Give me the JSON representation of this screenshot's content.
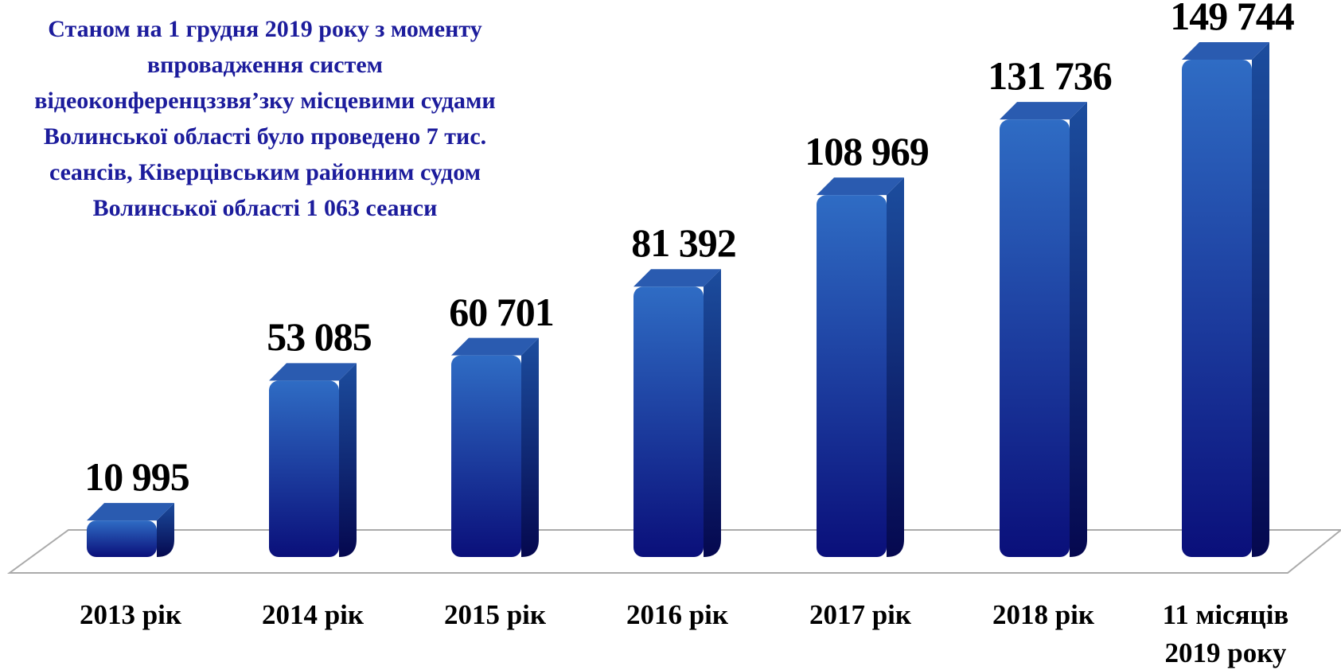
{
  "chart_data": {
    "type": "bar",
    "title": "Станом на 1 грудня 2019 року з моменту впровадження систем відеоконференцззвя’зку місцевими судами Волинської області було проведено 7 тис. сеансів, Ківерцівським районним судом Волинської області 1 063 сеанси",
    "categories": [
      "2013 рік",
      "2014 рік",
      "2015 рік",
      "2016 рік",
      "2017 рік",
      "2018 рік",
      "11 місяців 2019 року"
    ],
    "values": [
      10995,
      53085,
      60701,
      81392,
      108969,
      131736,
      149744
    ],
    "value_labels": [
      "10 995",
      "53 085",
      "60 701",
      "81 392",
      "108 969",
      "131 736",
      "149 744"
    ],
    "color": "#1a3fa8"
  }
}
